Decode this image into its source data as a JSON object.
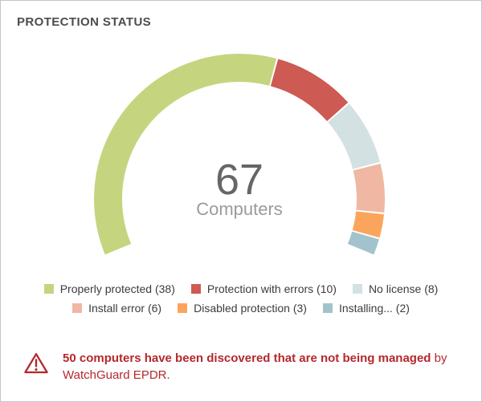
{
  "panel": {
    "title": "PROTECTION STATUS"
  },
  "chart_data": {
    "type": "gauge-donut",
    "title": "PROTECTION STATUS",
    "center_value": "67",
    "center_label": "Computers",
    "total": 67,
    "start_angle_deg": -112.5,
    "sweep_deg": 225,
    "legend_position": "bottom",
    "segments": [
      {
        "label": "Properly protected",
        "value": 38,
        "legend_label": "Properly protected (38)",
        "color": "#c5d57f"
      },
      {
        "label": "Protection with errors",
        "value": 10,
        "legend_label": "Protection with errors (10)",
        "color": "#cd5a53"
      },
      {
        "label": "No license",
        "value": 8,
        "legend_label": "No license (8)",
        "color": "#d3e1e3"
      },
      {
        "label": "Install error",
        "value": 6,
        "legend_label": "Install error (6)",
        "color": "#f0b7a3"
      },
      {
        "label": "Disabled protection",
        "value": 3,
        "legend_label": "Disabled protection (3)",
        "color": "#fba55c"
      },
      {
        "label": "Installing...",
        "value": 2,
        "legend_label": "Installing... (2)",
        "color": "#a2c3cc"
      }
    ]
  },
  "warning": {
    "bold_text": "50 computers have been discovered that are not being managed",
    "regular_text": " by WatchGuard EPDR.",
    "color": "#b5282d",
    "icon": "warning-triangle-icon"
  }
}
